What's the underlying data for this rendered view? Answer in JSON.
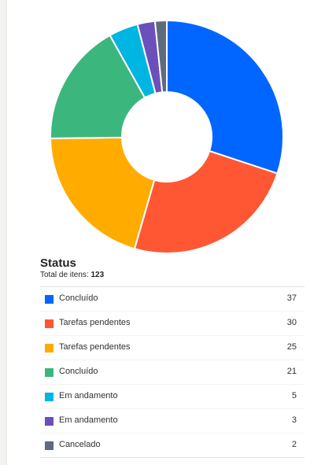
{
  "panel": {
    "title": "Status",
    "subtitle_prefix": "Total de itens: ",
    "total": "123"
  },
  "chart_data": {
    "type": "pie",
    "donut": true,
    "categories": [
      "Concluído",
      "Tarefas pendentes",
      "Tarefas pendentes",
      "Concluído",
      "Em andamento",
      "Em andamento",
      "Cancelado"
    ],
    "values": [
      37,
      30,
      25,
      21,
      5,
      3,
      2
    ],
    "colors": [
      "#0066ff",
      "#ff5733",
      "#ffab00",
      "#3bb77e",
      "#00b5e2",
      "#6b4fbb",
      "#5e6b7d"
    ],
    "legend": "bottom-table"
  },
  "legend": {
    "items": [
      {
        "label": "Concluído",
        "value": "37",
        "color": "#0066ff"
      },
      {
        "label": "Tarefas pendentes",
        "value": "30",
        "color": "#ff5733"
      },
      {
        "label": "Tarefas pendentes",
        "value": "25",
        "color": "#ffab00"
      },
      {
        "label": "Concluído",
        "value": "21",
        "color": "#3bb77e"
      },
      {
        "label": "Em andamento",
        "value": "5",
        "color": "#00b5e2"
      },
      {
        "label": "Em andamento",
        "value": "3",
        "color": "#6b4fbb"
      },
      {
        "label": "Cancelado",
        "value": "2",
        "color": "#5e6b7d"
      }
    ]
  }
}
